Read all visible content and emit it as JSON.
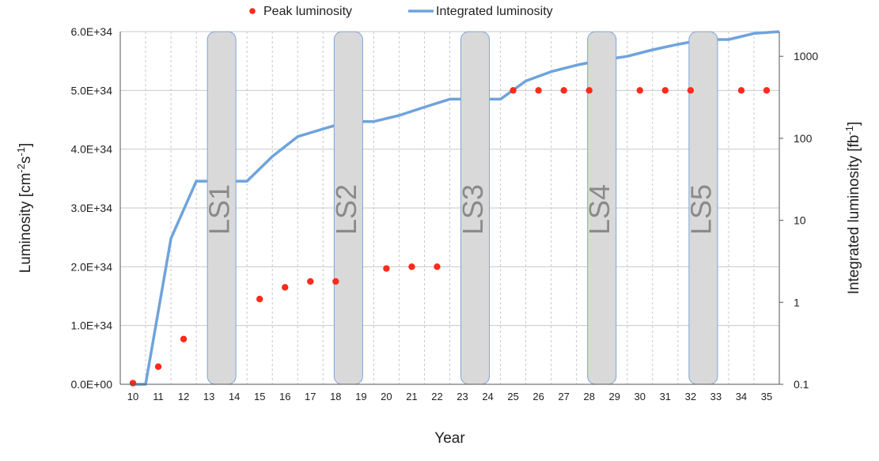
{
  "chart_data": {
    "type": "line",
    "legend": {
      "placement": "top",
      "entries": [
        "Peak luminosity",
        "Integrated luminosity"
      ]
    },
    "xlabel": "Year",
    "x_ticks": [
      10,
      11,
      12,
      13,
      14,
      15,
      16,
      17,
      18,
      19,
      20,
      21,
      22,
      23,
      24,
      25,
      26,
      27,
      28,
      29,
      30,
      31,
      32,
      33,
      34,
      35
    ],
    "xlim": [
      10,
      35
    ],
    "ylabel_left": "Luminosity [cm-2s-1]",
    "ylabel_left_parts": {
      "base": "Luminosity [cm",
      "sup1": "-2",
      "mid": "s",
      "sup2": "-1",
      "end": "]"
    },
    "ylim_left": [
      0,
      6e+34
    ],
    "y_ticks_left": [
      "0.0E+00",
      "1.0E+34",
      "2.0E+34",
      "3.0E+34",
      "4.0E+34",
      "5.0E+34",
      "6.0E+34"
    ],
    "ylabel_right": "Integrated luminosity [fb-1]",
    "ylabel_right_parts": {
      "base": "Integrated luminosity [fb",
      "sup": "-1",
      "end": "]"
    },
    "ylim_right": [
      0.1,
      2000
    ],
    "y_scale_right": "log",
    "y_ticks_right": [
      {
        "value": 0.1,
        "label": "0.1"
      },
      {
        "value": 1,
        "label": "1"
      },
      {
        "value": 10,
        "label": "10"
      },
      {
        "value": 100,
        "label": "100"
      },
      {
        "value": 1000,
        "label": "1000"
      }
    ],
    "grid": true,
    "series": [
      {
        "name": "Peak luminosity",
        "kind": "scatter",
        "axis": "left",
        "color": "#ff2a1a",
        "points": [
          {
            "x": 10,
            "y": 2e+32
          },
          {
            "x": 11,
            "y": 3e+33
          },
          {
            "x": 12,
            "y": 7.7e+33
          },
          {
            "x": 15,
            "y": 1.45e+34
          },
          {
            "x": 16,
            "y": 1.65e+34
          },
          {
            "x": 17,
            "y": 1.75e+34
          },
          {
            "x": 18,
            "y": 1.75e+34
          },
          {
            "x": 20,
            "y": 1.97e+34
          },
          {
            "x": 21,
            "y": 2e+34
          },
          {
            "x": 22,
            "y": 2e+34
          },
          {
            "x": 25,
            "y": 5e+34
          },
          {
            "x": 26,
            "y": 5e+34
          },
          {
            "x": 27,
            "y": 5e+34
          },
          {
            "x": 28,
            "y": 5e+34
          },
          {
            "x": 30,
            "y": 5e+34
          },
          {
            "x": 31,
            "y": 5e+34
          },
          {
            "x": 32,
            "y": 5e+34
          },
          {
            "x": 34,
            "y": 5e+34
          },
          {
            "x": 35,
            "y": 5e+34
          }
        ]
      },
      {
        "name": "Integrated luminosity",
        "kind": "line",
        "axis": "right",
        "color": "#6fa3dc",
        "points": [
          {
            "x": 10,
            "y": 0.1
          },
          {
            "x": 10.5,
            "y": 0.1
          },
          {
            "x": 11.5,
            "y": 6
          },
          {
            "x": 12.5,
            "y": 30
          },
          {
            "x": 13.5,
            "y": 30
          },
          {
            "x": 14.5,
            "y": 30
          },
          {
            "x": 15.5,
            "y": 60
          },
          {
            "x": 16.5,
            "y": 105
          },
          {
            "x": 17.5,
            "y": 130
          },
          {
            "x": 18.5,
            "y": 160
          },
          {
            "x": 19.5,
            "y": 160
          },
          {
            "x": 20.5,
            "y": 190
          },
          {
            "x": 21.5,
            "y": 240
          },
          {
            "x": 22.5,
            "y": 300
          },
          {
            "x": 24.5,
            "y": 300
          },
          {
            "x": 25.5,
            "y": 500
          },
          {
            "x": 26.5,
            "y": 650
          },
          {
            "x": 27.5,
            "y": 780
          },
          {
            "x": 28.5,
            "y": 900
          },
          {
            "x": 29.5,
            "y": 1000
          },
          {
            "x": 30.5,
            "y": 1200
          },
          {
            "x": 31.5,
            "y": 1400
          },
          {
            "x": 32.5,
            "y": 1600
          },
          {
            "x": 33.5,
            "y": 1600
          },
          {
            "x": 34.5,
            "y": 1900
          },
          {
            "x": 35.5,
            "y": 2000
          }
        ]
      }
    ],
    "annotations": [
      {
        "label": "LS1",
        "x_start": 13,
        "x_end": 14
      },
      {
        "label": "LS2",
        "x_start": 18,
        "x_end": 19
      },
      {
        "label": "LS3",
        "x_start": 23,
        "x_end": 24
      },
      {
        "label": "LS4",
        "x_start": 28,
        "x_end": 29
      },
      {
        "label": "LS5",
        "x_start": 32,
        "x_end": 33
      }
    ],
    "colors": {
      "grid": "#c8c8c8",
      "shutdown_fill": "#d9d9d9",
      "shutdown_stroke": "#7ea4d6",
      "axis": "#555555"
    }
  }
}
